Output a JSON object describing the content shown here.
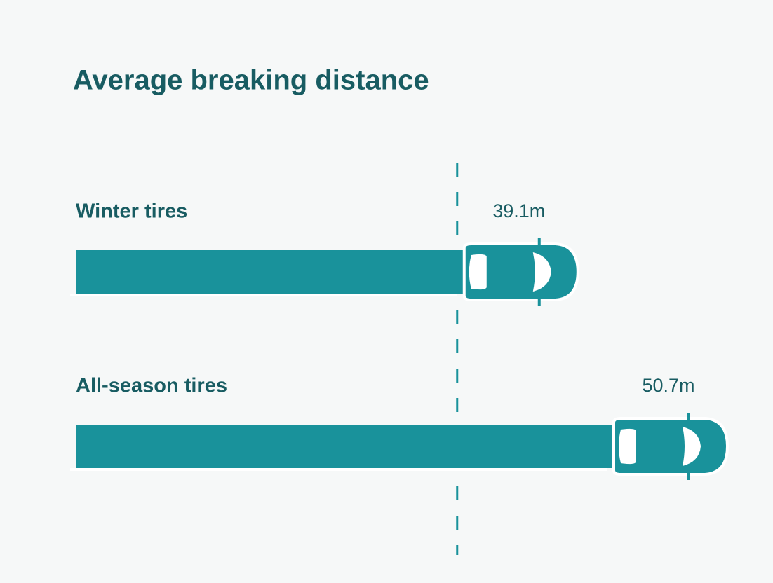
{
  "chart_data": {
    "type": "bar",
    "title": "Average breaking distance",
    "categories": [
      "Winter tires",
      "All-season tires"
    ],
    "values": [
      39.1,
      50.7
    ],
    "value_labels": [
      "39.1m",
      "50.7m"
    ],
    "color": "#19929b"
  }
}
